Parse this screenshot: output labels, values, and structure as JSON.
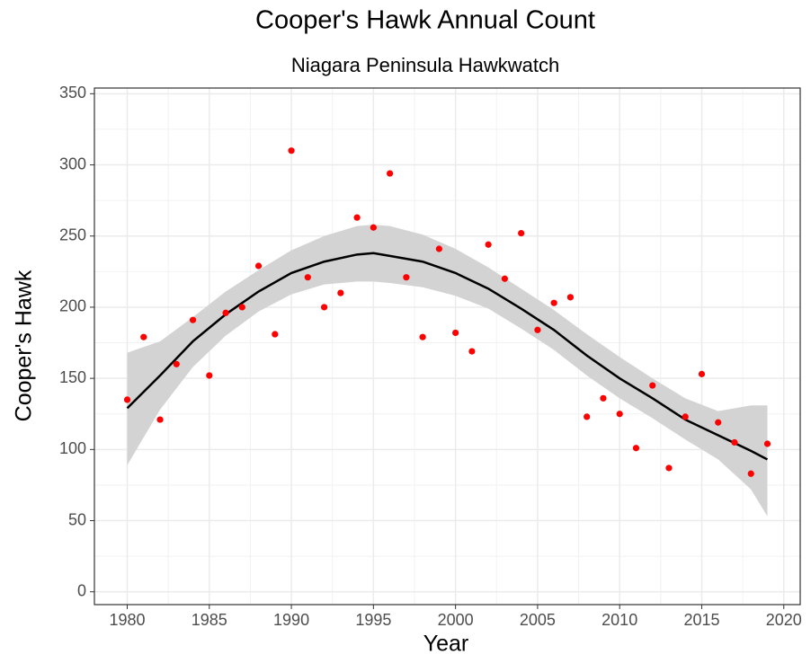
{
  "chart_data": {
    "type": "scatter",
    "title": "Cooper's Hawk Annual Count",
    "subtitle": "Niagara Peninsula Hawkwatch",
    "x_label": "Year",
    "y_label": "Cooper's Hawk",
    "x": [
      1980,
      1981,
      1982,
      1983,
      1984,
      1985,
      1986,
      1987,
      1988,
      1989,
      1990,
      1991,
      1992,
      1993,
      1994,
      1995,
      1996,
      1997,
      1998,
      1999,
      2000,
      2001,
      2002,
      2003,
      2004,
      2005,
      2006,
      2007,
      2008,
      2009,
      2010,
      2011,
      2012,
      2013,
      2014,
      2015,
      2016,
      2017,
      2018,
      2019
    ],
    "values": [
      135,
      179,
      121,
      160,
      191,
      152,
      196,
      200,
      229,
      181,
      310,
      221,
      200,
      210,
      263,
      256,
      294,
      221,
      179,
      241,
      182,
      169,
      244,
      220,
      252,
      184,
      203,
      207,
      123,
      136,
      125,
      101,
      145,
      87,
      123,
      153,
      119,
      105,
      83,
      104
    ],
    "color": "#ff0000",
    "smooth": {
      "x": [
        1980,
        1982,
        1984,
        1986,
        1988,
        1990,
        1992,
        1994,
        1995,
        1996,
        1998,
        2000,
        2002,
        2004,
        2006,
        2008,
        2010,
        2012,
        2014,
        2016,
        2018,
        2019
      ],
      "values": [
        129,
        152,
        176,
        195,
        211,
        224,
        232,
        237,
        238,
        236,
        232,
        224,
        213,
        199,
        184,
        166,
        150,
        136,
        121,
        110,
        99,
        93
      ],
      "lower": [
        89,
        128,
        158,
        180,
        197,
        209,
        216,
        218,
        218,
        217,
        214,
        208,
        199,
        185,
        170,
        152,
        136,
        122,
        107,
        93,
        72,
        53
      ],
      "upper": [
        168,
        176,
        193,
        211,
        226,
        240,
        250,
        257,
        258,
        257,
        251,
        241,
        228,
        213,
        198,
        181,
        165,
        150,
        136,
        127,
        131,
        131
      ],
      "color": "#000000",
      "band_color": "#d3d3d3"
    },
    "xlim": [
      1978,
      2021
    ],
    "ylim": [
      -9,
      354
    ],
    "xticks": [
      1980,
      1985,
      1990,
      1995,
      2000,
      2005,
      2010,
      2015,
      2020
    ],
    "yticks": [
      0,
      50,
      100,
      150,
      200,
      250,
      300,
      350
    ],
    "grid": true
  }
}
